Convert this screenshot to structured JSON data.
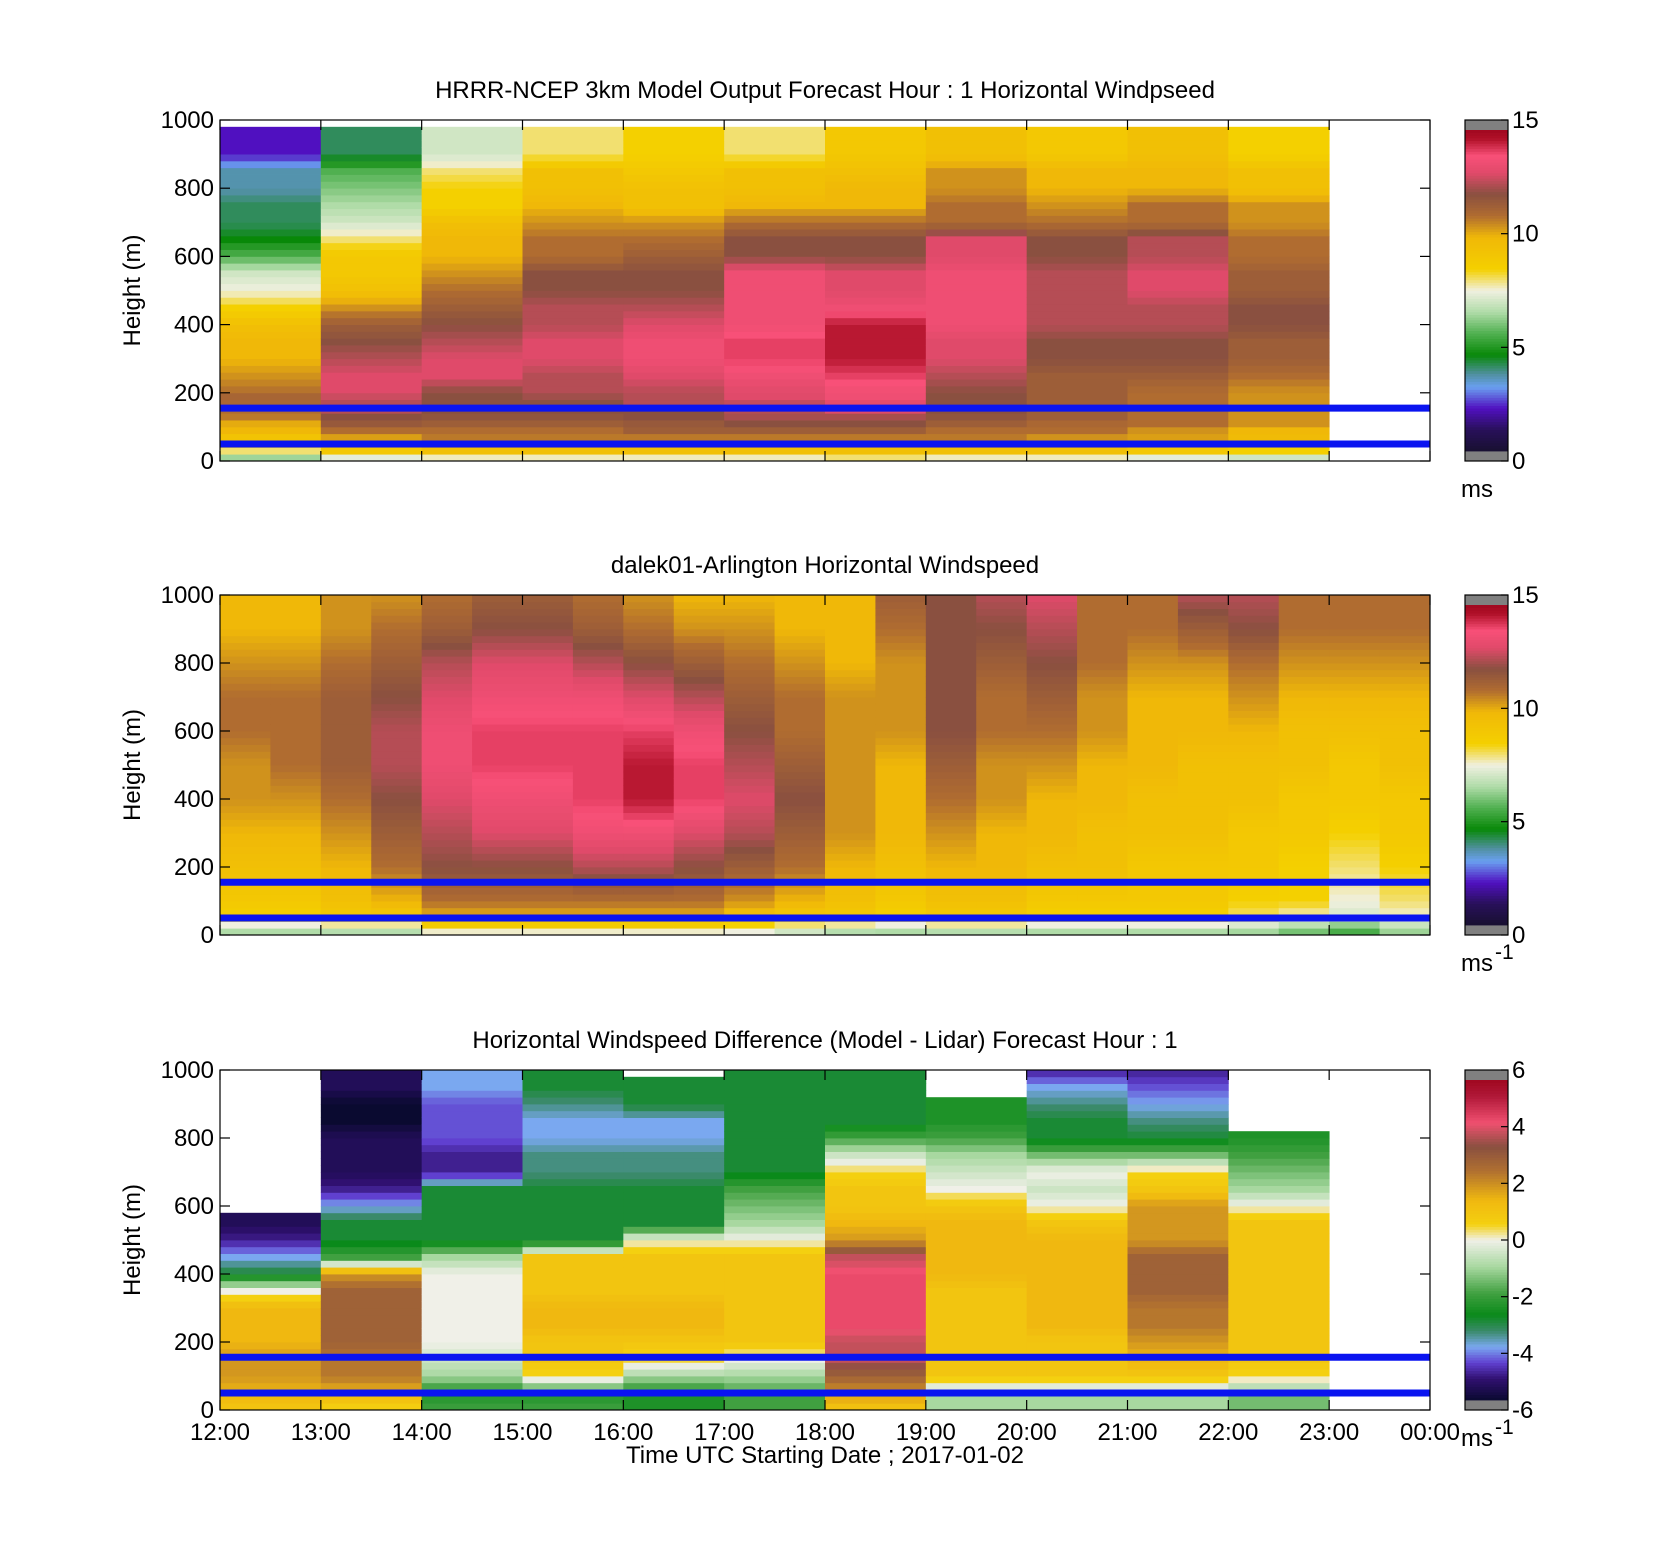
{
  "figure": {
    "xlabel": "Time UTC  Starting Date ; 2017-01-02",
    "x_ticks": [
      "12:00",
      "13:00",
      "14:00",
      "15:00",
      "16:00",
      "17:00",
      "18:00",
      "19:00",
      "20:00",
      "21:00",
      "22:00",
      "23:00",
      "00:00"
    ]
  },
  "chart_data": [
    {
      "type": "heatmap",
      "title": "HRRR-NCEP 3km Model Output   Forecast Hour : 1 Horizontal Windpseed",
      "ylabel": "Height (m)",
      "y_ticks": [
        "0",
        "200",
        "400",
        "600",
        "800",
        "1000"
      ],
      "ylim": [
        0,
        1000
      ],
      "xlim": [
        12,
        24
      ],
      "colorbar": {
        "ticks": [
          "0",
          "5",
          "10",
          "15"
        ],
        "range": [
          0,
          15
        ],
        "unit": "ms",
        "unit_exp": "",
        "scale": "speed"
      },
      "reference_heights": [
        50,
        155
      ],
      "time_bins": [
        12,
        13,
        14,
        15,
        16,
        17,
        18,
        19,
        20,
        21,
        22
      ],
      "time_step": 1,
      "heights": [
        0,
        15,
        30,
        45,
        60,
        75,
        90,
        105,
        120,
        135,
        150,
        165,
        180,
        200,
        250,
        300,
        350,
        400,
        450,
        500,
        550,
        600,
        650,
        700,
        750,
        800,
        850,
        900,
        950,
        1000
      ],
      "values": [
        [
          5,
          7,
          8,
          9,
          9,
          9.5,
          10,
          10,
          10.5,
          11,
          11,
          11,
          11.5,
          11,
          10.5,
          10,
          10,
          9.5,
          8.5,
          7.5,
          7,
          5.5,
          4.5,
          4,
          4,
          3.5,
          3.5,
          2,
          2
        ],
        [
          6,
          8,
          9,
          9.5,
          10,
          10.5,
          11,
          11.5,
          12,
          12,
          12.5,
          12.5,
          12.5,
          13,
          13,
          12.5,
          12,
          11.5,
          10.5,
          9.5,
          9,
          9,
          8,
          7,
          6.5,
          6,
          5.5,
          4,
          4
        ],
        [
          6,
          8.5,
          9.5,
          10,
          10.5,
          11,
          11,
          11.5,
          11.5,
          12,
          12,
          12,
          12,
          12,
          13,
          13,
          12.5,
          12,
          11.5,
          11,
          10.5,
          10,
          10,
          9.5,
          8.5,
          8.5,
          8,
          7,
          7
        ],
        [
          6,
          8.5,
          9.5,
          10,
          10.5,
          11,
          11,
          11.5,
          11.5,
          12,
          12,
          12,
          12,
          12.5,
          12.5,
          13,
          13,
          12.5,
          12.5,
          12,
          12,
          11,
          11,
          10.5,
          10,
          9.5,
          9.5,
          8,
          8
        ],
        [
          6,
          8.5,
          9.5,
          10,
          10.5,
          11,
          11.5,
          11.5,
          12,
          12,
          12,
          12.5,
          12.5,
          12.5,
          13,
          13.5,
          13.5,
          13,
          12.5,
          12,
          12,
          11.5,
          11,
          10.5,
          9.5,
          9.5,
          9,
          8.5,
          8.5
        ],
        [
          6,
          8.5,
          9.5,
          10,
          10.5,
          11,
          11.5,
          12,
          12,
          12.5,
          12.5,
          12.5,
          13,
          13,
          13.5,
          14,
          14,
          13.5,
          13.5,
          13.5,
          13.5,
          12,
          12,
          11,
          10,
          9.5,
          9.5,
          8,
          8
        ],
        [
          7,
          8.5,
          9.5,
          10,
          10.5,
          11,
          11.5,
          12,
          12,
          12.5,
          13,
          13,
          13.5,
          13.5,
          14,
          14.5,
          14.5,
          14.5,
          13.5,
          13,
          13,
          12,
          12,
          11,
          10,
          10,
          9.5,
          9,
          9
        ],
        [
          6,
          8.5,
          9.5,
          10,
          10.5,
          11,
          11,
          11.5,
          11.5,
          12,
          12,
          12,
          12,
          12,
          12.5,
          13,
          13,
          13.5,
          13.5,
          13.5,
          13.5,
          13,
          13,
          11,
          11,
          10.5,
          10.5,
          9.5,
          9.5
        ],
        [
          6,
          8.5,
          9.5,
          10,
          10.5,
          10.5,
          11,
          11,
          11.5,
          11.5,
          11.5,
          11.5,
          11.5,
          11.5,
          11.5,
          12,
          12,
          12.5,
          12.5,
          12.5,
          12.5,
          12,
          12,
          11,
          10.5,
          10,
          10,
          9,
          9
        ],
        [
          6,
          8,
          9,
          9.5,
          10,
          10.5,
          10.5,
          11,
          11,
          11,
          11,
          11,
          11,
          11,
          11.5,
          12,
          12,
          12.5,
          12.5,
          13,
          13,
          12.5,
          12.5,
          11,
          11,
          10,
          10,
          9.5,
          9.5
        ],
        [
          6,
          7.5,
          8.5,
          9,
          9.5,
          10,
          10,
          10.5,
          10.5,
          10.5,
          10.5,
          10.5,
          10.5,
          10.5,
          11,
          11.5,
          11.5,
          12,
          12,
          11.5,
          11.5,
          11,
          11,
          10.5,
          10.5,
          9.5,
          9.5,
          8.5,
          8.5
        ]
      ]
    },
    {
      "type": "heatmap",
      "title": "dalek01-Arlington  Horizontal Windspeed",
      "ylabel": "Height (m)",
      "y_ticks": [
        "0",
        "200",
        "400",
        "600",
        "800",
        "1000"
      ],
      "ylim": [
        0,
        1000
      ],
      "xlim": [
        12,
        24
      ],
      "colorbar": {
        "ticks": [
          "0",
          "5",
          "10",
          "15"
        ],
        "range": [
          0,
          15
        ],
        "unit": "ms",
        "unit_exp": "-1",
        "scale": "speed"
      },
      "reference_heights": [
        50,
        155
      ],
      "time_bins": [
        12,
        12.5,
        13,
        13.5,
        14,
        14.5,
        15,
        15.5,
        16,
        16.5,
        17,
        17.5,
        18,
        18.5,
        19,
        19.5,
        20,
        20.5,
        21,
        21.5,
        22,
        22.5,
        23,
        23.5
      ],
      "time_step": 0.5,
      "heights": [
        0,
        50,
        100,
        200,
        300,
        400,
        500,
        600,
        700,
        800,
        900,
        1000
      ],
      "values": [
        [
          6,
          8.5,
          9,
          9.5,
          10,
          10.5,
          10.5,
          11,
          11,
          10.5,
          10,
          10
        ],
        [
          6,
          8.5,
          9,
          9.5,
          10,
          10.5,
          11,
          11,
          11,
          10.5,
          10,
          10
        ],
        [
          6,
          9,
          9.5,
          10,
          10.5,
          11,
          11.5,
          11.5,
          11.5,
          11,
          10.5,
          10.5
        ],
        [
          6,
          9,
          10,
          11,
          11.5,
          12,
          12.5,
          12.5,
          12,
          11.5,
          11,
          10.5
        ],
        [
          7,
          10,
          11,
          12,
          12.5,
          13,
          13.5,
          13.5,
          13,
          12.5,
          11.5,
          11
        ],
        [
          7,
          10,
          11,
          12,
          13,
          13.5,
          14,
          14,
          13.5,
          13,
          12,
          11.5
        ],
        [
          7,
          10,
          11,
          12,
          13,
          13.5,
          14,
          14,
          13.5,
          13,
          12,
          11.5
        ],
        [
          7,
          10,
          11,
          12.5,
          13.5,
          14,
          14,
          14,
          13.5,
          12.5,
          11.5,
          11
        ],
        [
          7,
          10,
          11,
          12.5,
          13.5,
          14.5,
          14.5,
          14,
          13,
          12,
          11,
          10.5
        ],
        [
          7,
          10,
          11,
          12,
          13,
          14,
          14,
          13.5,
          12.5,
          11.5,
          10.5,
          10
        ],
        [
          7,
          9.5,
          10.5,
          11.5,
          12.5,
          13,
          12.5,
          12,
          11.5,
          11,
          10.5,
          10
        ],
        [
          6.5,
          9,
          10,
          11,
          11.5,
          12,
          11.5,
          11,
          11,
          10.5,
          10,
          10
        ],
        [
          6,
          9,
          9.5,
          10,
          10.5,
          10.5,
          10.5,
          10.5,
          10.5,
          10,
          10,
          10
        ],
        [
          6,
          8.5,
          9,
          9.5,
          10,
          10,
          10,
          10.5,
          10.5,
          10.5,
          11,
          11.5
        ],
        [
          6,
          9,
          9.5,
          10,
          10.5,
          11,
          11.5,
          12,
          12,
          12,
          12,
          12
        ],
        [
          6,
          9,
          9.5,
          10,
          10,
          10.5,
          10.5,
          11,
          11,
          11.5,
          12,
          12.5
        ],
        [
          6,
          8.5,
          9,
          9.5,
          10,
          10,
          10.5,
          11,
          11.5,
          12,
          12.5,
          13
        ],
        [
          6,
          8.5,
          9,
          9.5,
          9.5,
          10,
          10,
          10.5,
          10.5,
          11,
          11,
          11
        ],
        [
          6,
          8.5,
          9,
          9,
          9.5,
          9.5,
          10,
          10,
          10,
          10.5,
          11,
          11
        ],
        [
          6,
          8.5,
          9,
          9,
          9.5,
          9.5,
          9.5,
          10,
          10,
          10.5,
          11.5,
          12.5
        ],
        [
          6,
          8,
          8.5,
          9,
          9,
          9.5,
          9.5,
          10,
          10.5,
          11,
          12,
          12.5
        ],
        [
          5.5,
          7.5,
          8.5,
          8.5,
          9,
          9,
          9.5,
          9.5,
          10,
          10.5,
          11,
          11
        ],
        [
          5,
          7,
          7.5,
          8,
          8.5,
          9,
          9,
          9.5,
          10,
          10.5,
          11,
          11
        ],
        [
          6,
          7.5,
          8,
          8.5,
          9,
          9,
          9.5,
          9.5,
          10,
          10.5,
          11,
          11
        ]
      ]
    },
    {
      "type": "heatmap",
      "title": "Horizontal Windspeed Difference (Model - Lidar) Forecast Hour : 1",
      "ylabel": "Height (m)",
      "y_ticks": [
        "0",
        "200",
        "400",
        "600",
        "800",
        "1000"
      ],
      "ylim": [
        0,
        1000
      ],
      "xlim": [
        12,
        24
      ],
      "colorbar": {
        "ticks": [
          "-6",
          "-4",
          "-2",
          "0",
          "2",
          "4",
          "6"
        ],
        "range": [
          -6,
          6
        ],
        "unit": "ms",
        "unit_exp": "-1",
        "scale": "diff"
      },
      "reference_heights": [
        50,
        155
      ],
      "time_bins": [
        12,
        13,
        14,
        15,
        16,
        17,
        18,
        19,
        20,
        21,
        22
      ],
      "time_step": 1,
      "heights": [
        0,
        50,
        100,
        150,
        200,
        250,
        300,
        350,
        400,
        450,
        500,
        550,
        600,
        650,
        700,
        750,
        800,
        850,
        900,
        950,
        1000
      ],
      "values": [
        [
          1,
          1.5,
          2,
          2,
          1.5,
          1.5,
          1.5,
          0,
          -3,
          -4,
          -5,
          -5.5,
          null,
          null,
          null,
          null,
          null,
          null,
          null,
          null,
          null
        ],
        [
          0.5,
          1.5,
          2.5,
          2.5,
          3,
          3,
          3,
          3,
          2,
          -2,
          -3,
          -3,
          -4,
          -5,
          -5.5,
          -5.5,
          -5.5,
          -6,
          -6,
          -5.5,
          -5.5
        ],
        [
          -2,
          -2.5,
          -1,
          -0.5,
          0,
          0,
          0,
          0,
          0,
          -1,
          -3,
          -3,
          -3,
          -3,
          -5,
          -5,
          -4.5,
          -4.5,
          -4.5,
          -4,
          -4
        ],
        [
          -2,
          -2.5,
          0.5,
          1,
          1,
          1.5,
          1.5,
          1,
          1,
          1,
          -3,
          -3,
          -3,
          -3,
          -3.5,
          -3.5,
          -4,
          -4,
          -3.5,
          -3,
          -3
        ],
        [
          -2.5,
          -2.5,
          -1,
          0.5,
          1,
          1.5,
          1.5,
          1,
          1,
          1,
          0,
          -3,
          -3,
          -3,
          -3.5,
          -3.5,
          -4,
          -4,
          -3,
          -3,
          null
        ],
        [
          -2,
          -2,
          -1,
          0,
          1,
          1,
          1,
          1,
          1,
          1,
          0,
          -1,
          -1.5,
          -2,
          -3,
          -3,
          -3,
          -3,
          -3,
          -3,
          -3
        ],
        [
          1,
          2,
          3,
          4,
          4,
          4.5,
          4.5,
          4.5,
          4.5,
          4,
          2,
          1.5,
          1,
          1,
          0.5,
          -0.5,
          -2,
          -3,
          -3,
          -3,
          -3
        ],
        [
          -1,
          -1,
          1,
          1,
          1,
          1,
          1,
          1,
          1.5,
          1.5,
          1.5,
          1.5,
          1,
          0,
          -0.5,
          -1,
          -2,
          -2.5,
          -2.5,
          null,
          null
        ],
        [
          -1,
          -1,
          1,
          1,
          1,
          1.5,
          1.5,
          1.5,
          1.5,
          1.5,
          1.5,
          1,
          0,
          -0.5,
          0,
          -1.5,
          -3,
          -3,
          -3.5,
          -4,
          -5
        ],
        [
          -1,
          -1,
          1,
          1.5,
          2,
          2.5,
          2.5,
          3,
          3,
          3,
          2,
          2,
          2,
          1,
          0.5,
          -1.5,
          -3,
          -3.5,
          -4,
          -4.5,
          -5
        ],
        [
          -1.5,
          -1.5,
          0.5,
          1,
          1,
          1,
          1,
          1,
          1,
          1,
          1,
          1,
          0,
          -1,
          -1.5,
          -2,
          -2.5,
          null,
          null,
          null,
          null
        ]
      ]
    }
  ]
}
